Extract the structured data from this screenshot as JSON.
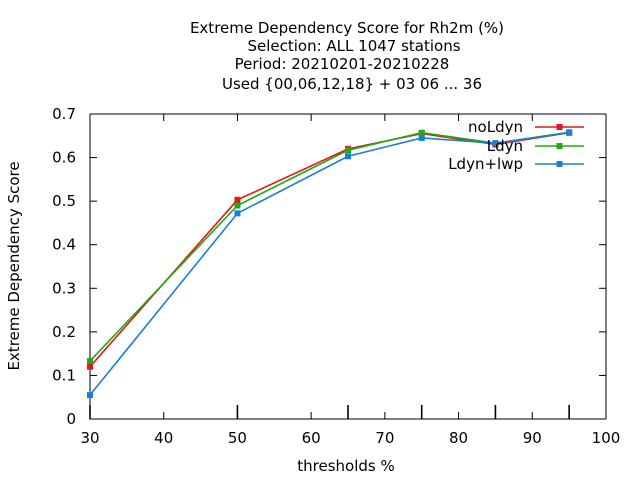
{
  "chart_data": {
    "type": "line",
    "title_lines": [
      "Extreme Dependency Score  for Rh2m (%)",
      "Selection: ALL   1047 stations",
      "Period: 20210201-20210228",
      "Used {00,06,12,18} + 03 06 ... 36"
    ],
    "xlabel": "thresholds %",
    "ylabel": "Extreme Dependency Score",
    "xlim": [
      30,
      100
    ],
    "ylim": [
      0,
      0.7
    ],
    "xticks": [
      30,
      40,
      50,
      60,
      70,
      80,
      90,
      100
    ],
    "yticks": [
      0,
      0.1,
      0.2,
      0.3,
      0.4,
      0.5,
      0.6,
      0.7
    ],
    "ytick_labels": [
      "0",
      "0.1",
      "0.2",
      "0.3",
      "0.4",
      "0.5",
      "0.6",
      "0.7"
    ],
    "legend_position": "top-right",
    "grid": false,
    "series": [
      {
        "name": "noLdyn",
        "color": "#e8151b",
        "x": [
          30,
          50,
          65,
          75,
          85,
          95
        ],
        "y": [
          0.12,
          0.503,
          0.62,
          0.655,
          0.63,
          0.657
        ]
      },
      {
        "name": "Ldyn",
        "color": "#22aa0e",
        "x": [
          30,
          50,
          65,
          75,
          85,
          95
        ],
        "y": [
          0.133,
          0.49,
          0.617,
          0.657,
          0.633,
          0.658
        ]
      },
      {
        "name": "Ldyn+lwp",
        "color": "#1a7fd6",
        "x": [
          30,
          50,
          65,
          75,
          85,
          95
        ],
        "y": [
          0.055,
          0.472,
          0.603,
          0.645,
          0.633,
          0.657
        ]
      }
    ]
  }
}
